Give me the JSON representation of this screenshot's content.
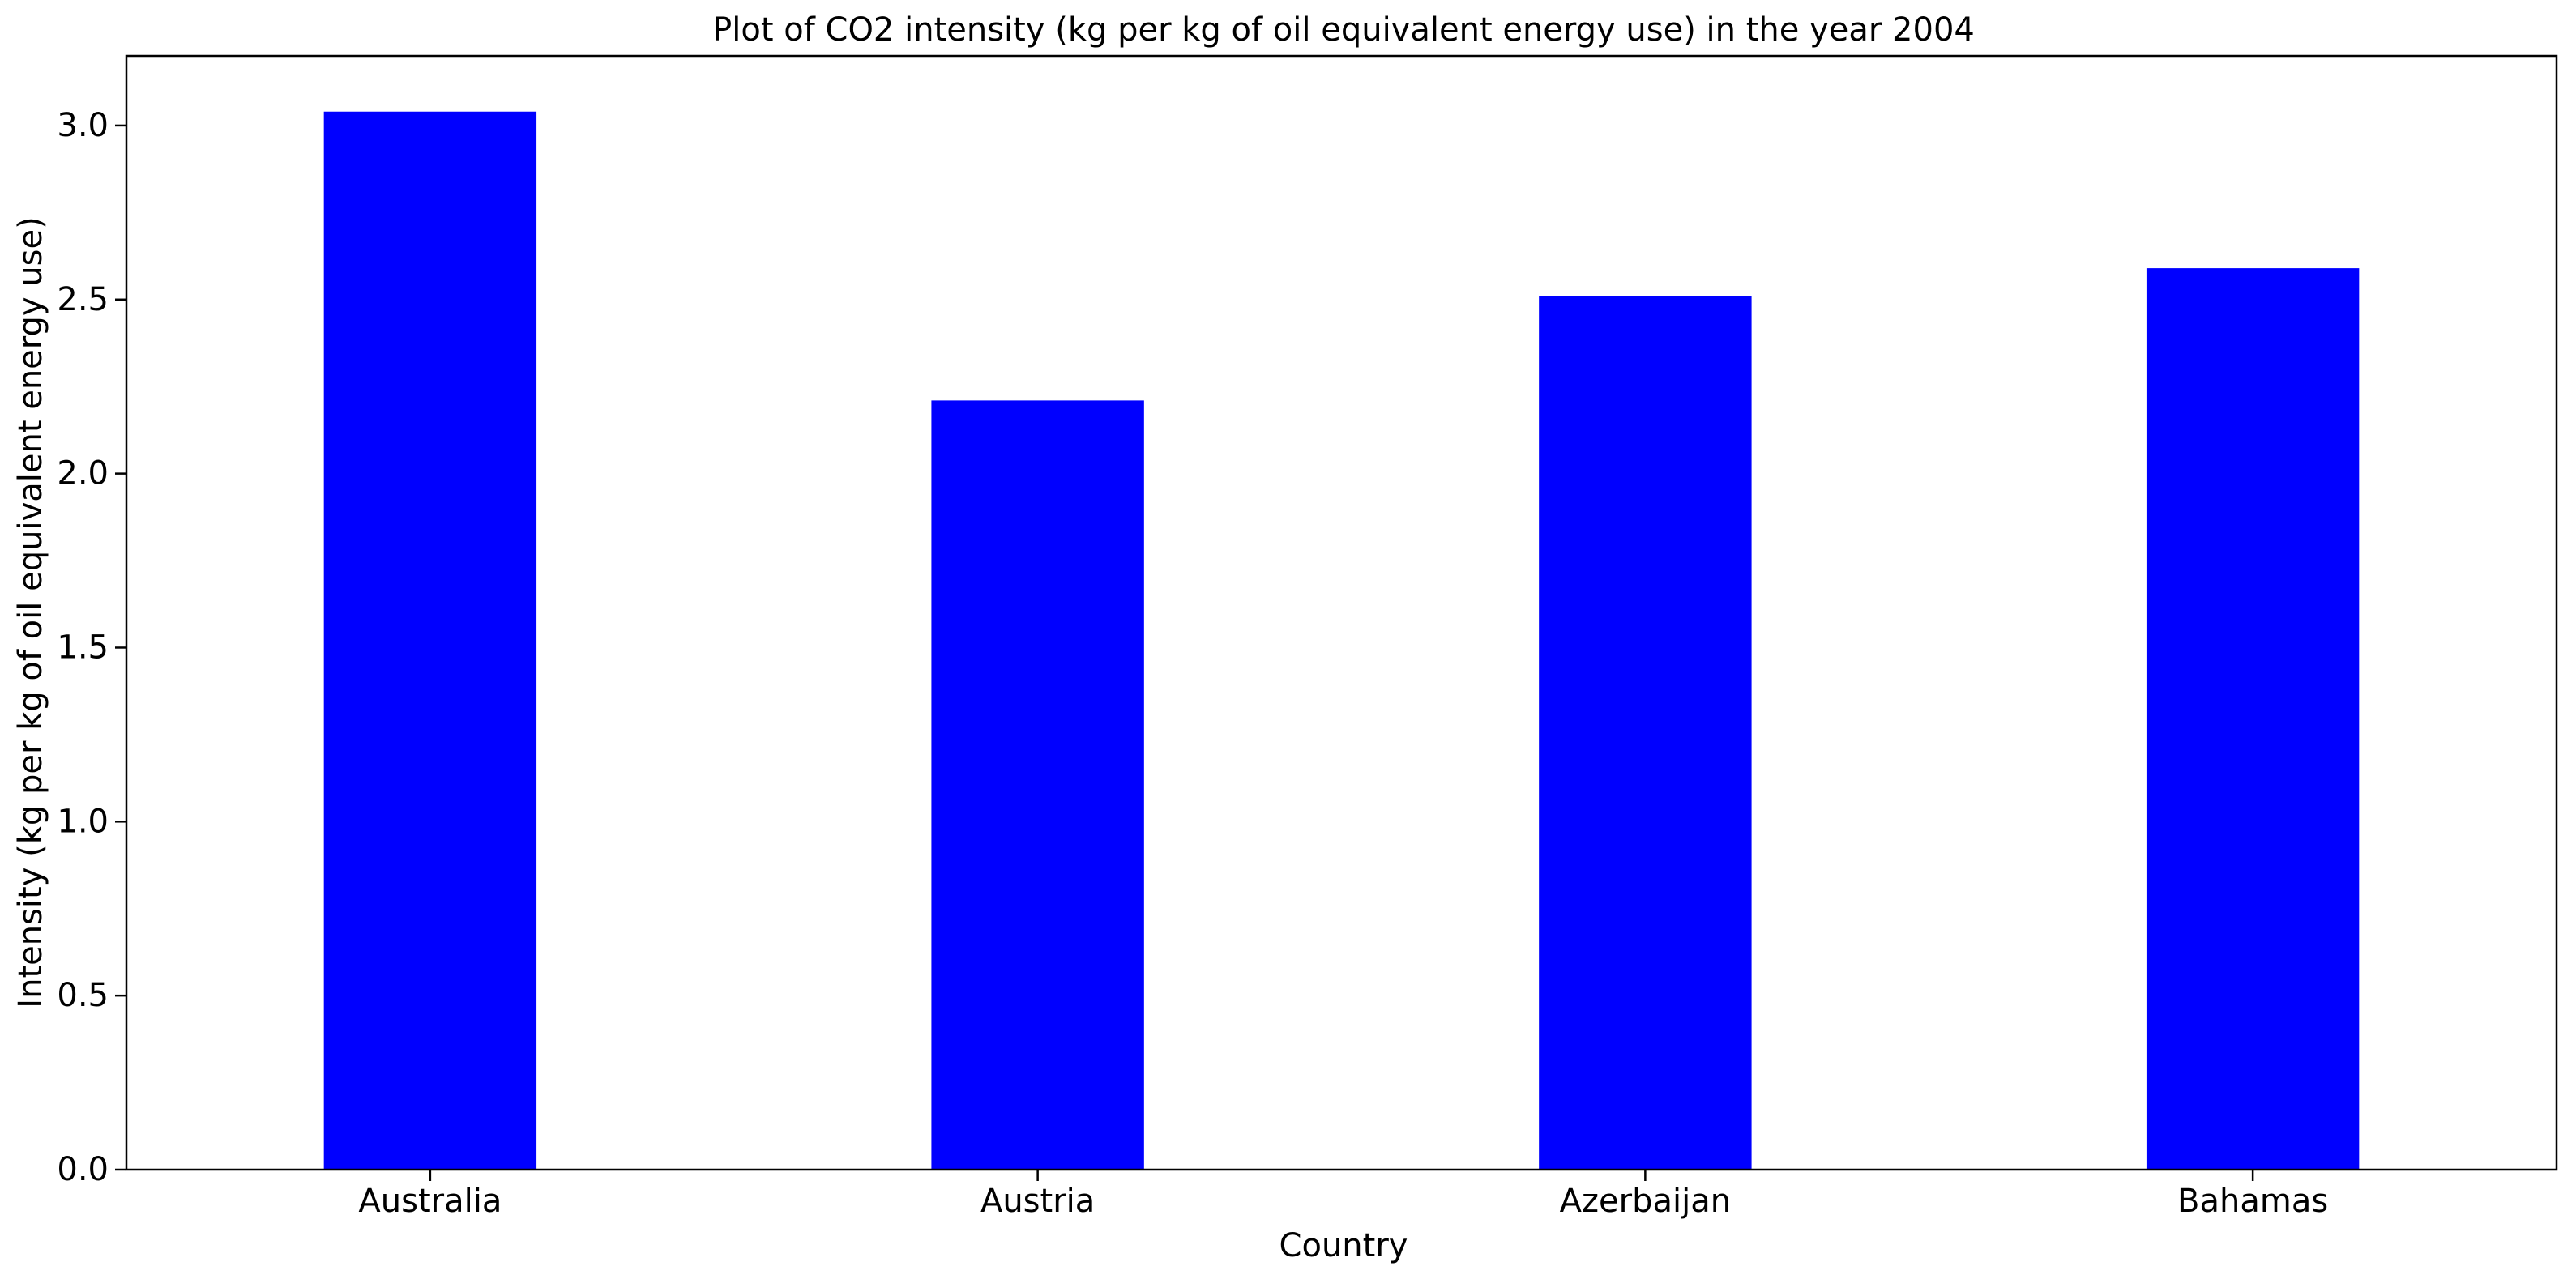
{
  "chart_data": {
    "type": "bar",
    "title": "Plot of CO2 intensity (kg per kg of oil equivalent energy use) in the year 2004",
    "xlabel": "Country",
    "ylabel": "Intensity (kg per kg of oil equivalent energy use)",
    "categories": [
      "Australia",
      "Austria",
      "Azerbaijan",
      "Bahamas"
    ],
    "values": [
      3.04,
      2.21,
      2.51,
      2.59
    ],
    "ylim": [
      0,
      3.2
    ],
    "yticks": [
      "0.0",
      "0.5",
      "1.0",
      "1.5",
      "2.0",
      "2.5",
      "3.0"
    ],
    "ytick_values": [
      0,
      0.5,
      1.0,
      1.5,
      2.0,
      2.5,
      3.0
    ],
    "bar_color": "#0000ff",
    "grid": false,
    "legend": "none"
  }
}
